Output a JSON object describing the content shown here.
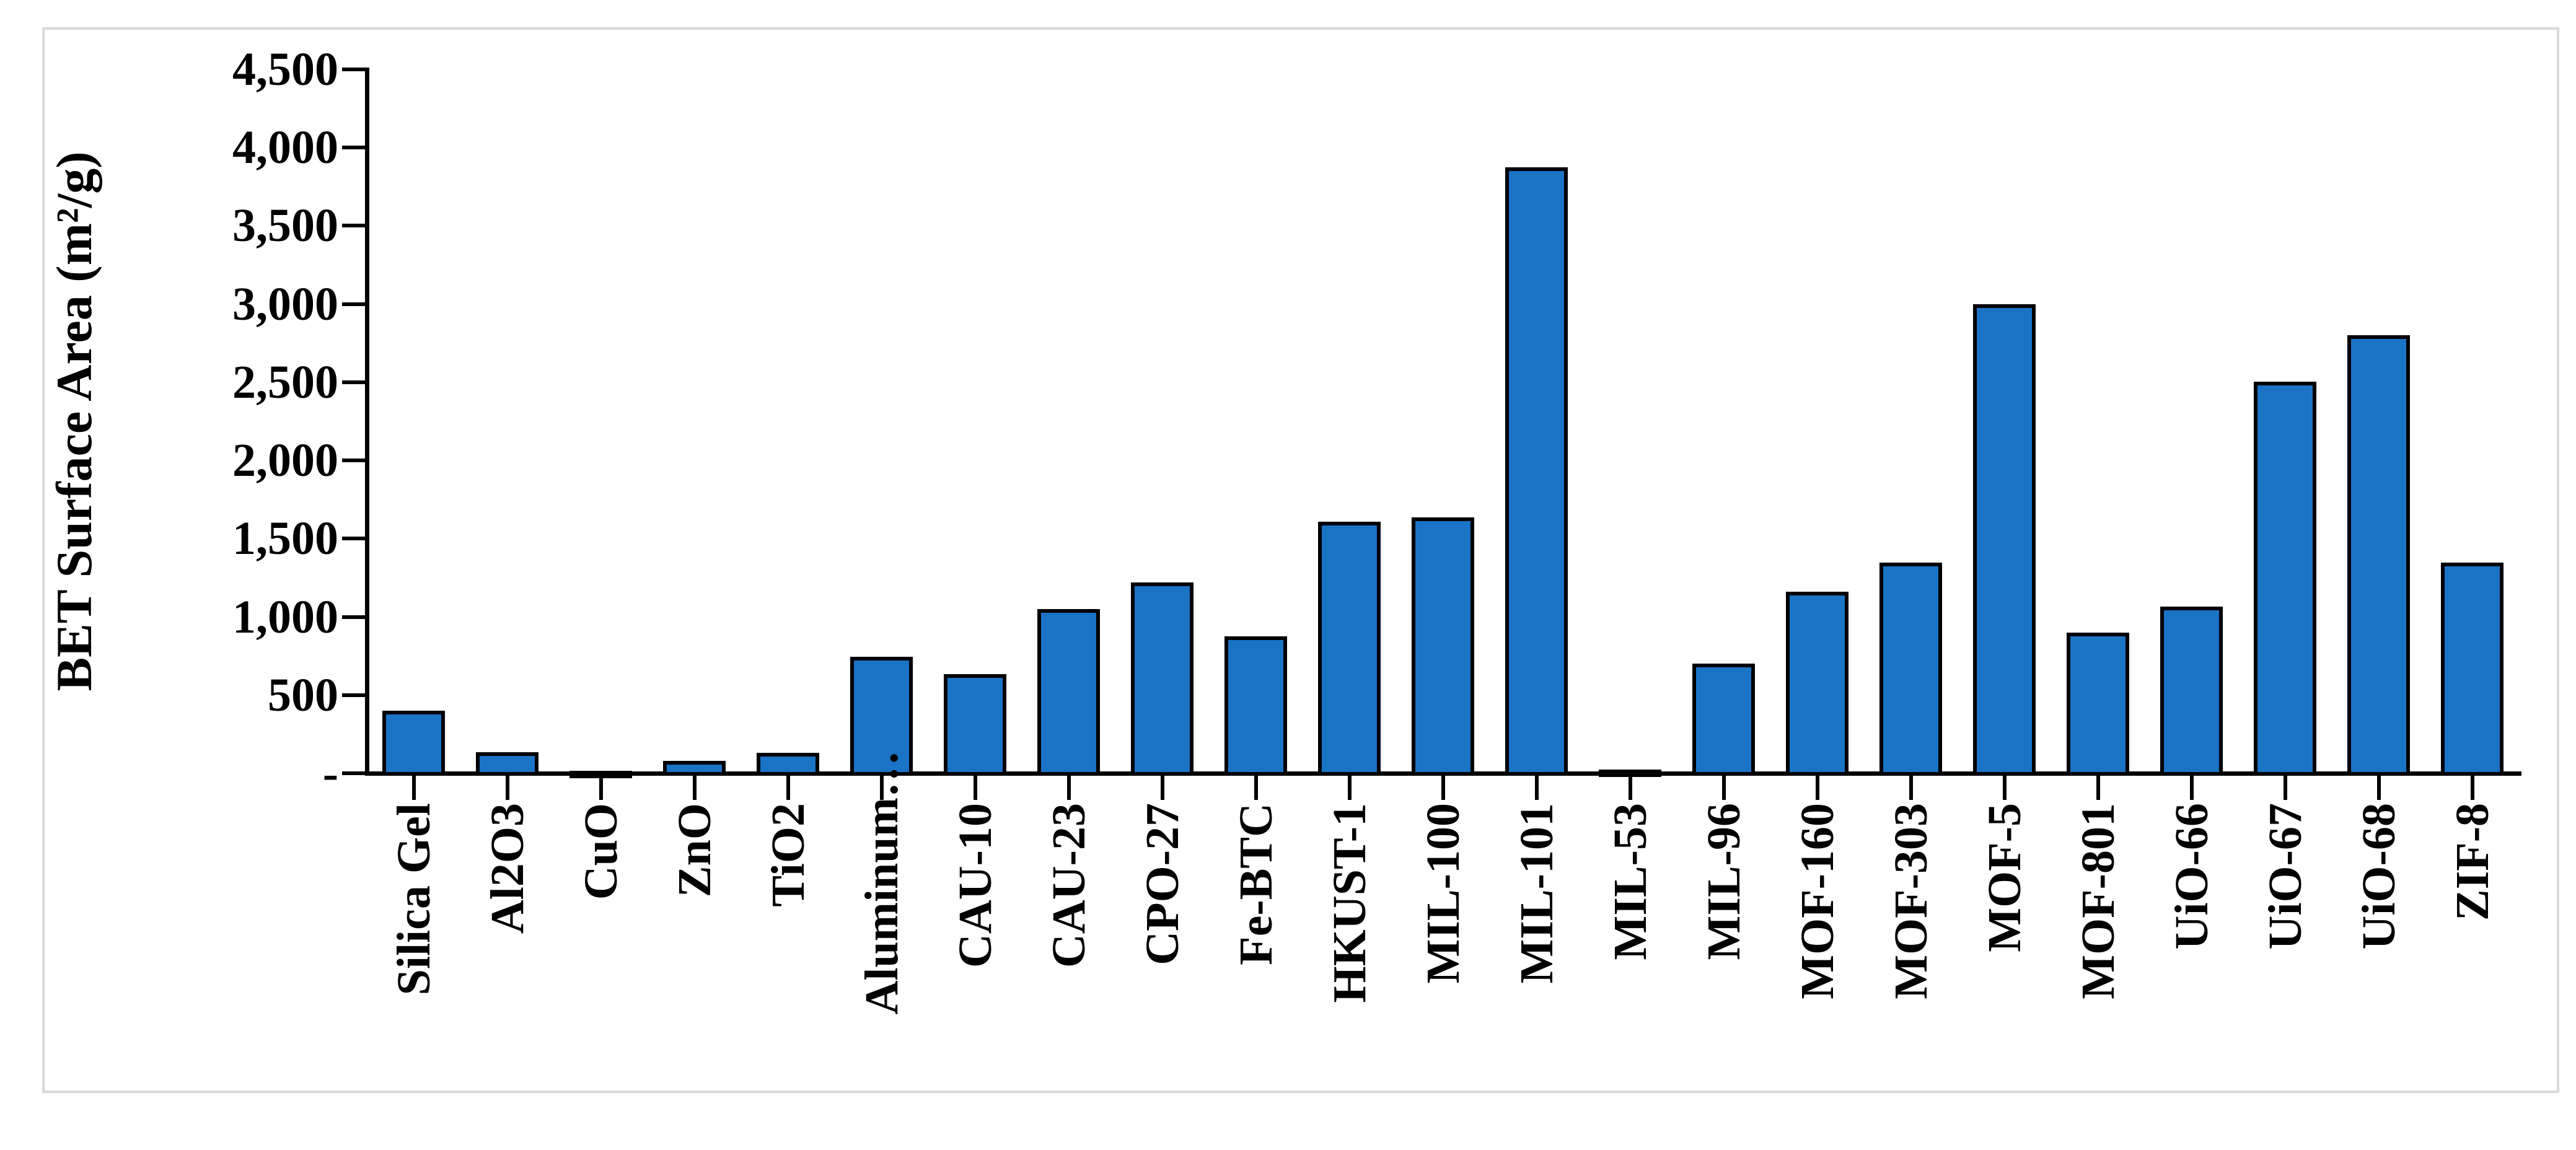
{
  "figure": {
    "background": "#FFFFFF",
    "border_color": "#D9D9D9"
  },
  "chart_data": {
    "type": "bar",
    "title": "",
    "ylabel": "BET Surface Area (m²/g)",
    "xlabel": "",
    "ylim": [
      0,
      4500
    ],
    "ytick_interval": 500,
    "ytick_labels_top_to_bottom": [
      "4,500",
      "4,000",
      "3,500",
      "3,000",
      "2,500",
      "2,000",
      "1,500",
      "1,000",
      "500",
      "-"
    ],
    "grid": false,
    "legend": "none",
    "bar_fill": "#1B73C6",
    "bar_border": "#000000",
    "axis_color": "#000000",
    "categories": [
      "Silica Gel",
      "Al2O3",
      "CuO",
      "ZnO",
      "TiO2",
      "Aluminum…",
      "CAU-10",
      "CAU-23",
      "CPO-27",
      "Fe-BTC",
      "HKUST-1",
      "MIL-100",
      "MIL-101",
      "MIL-53",
      "MIL-96",
      "MOF-160",
      "MOF-303",
      "MOF-5",
      "MOF-801",
      "UiO-66",
      "UiO-67",
      "UiO-68",
      "ZIF-8"
    ],
    "values": [
      400,
      135,
      15,
      80,
      130,
      745,
      635,
      1050,
      1220,
      875,
      1610,
      1635,
      3875,
      25,
      700,
      1160,
      1345,
      3000,
      900,
      1065,
      2505,
      2800,
      1345
    ],
    "truncated_category_index": 5
  }
}
